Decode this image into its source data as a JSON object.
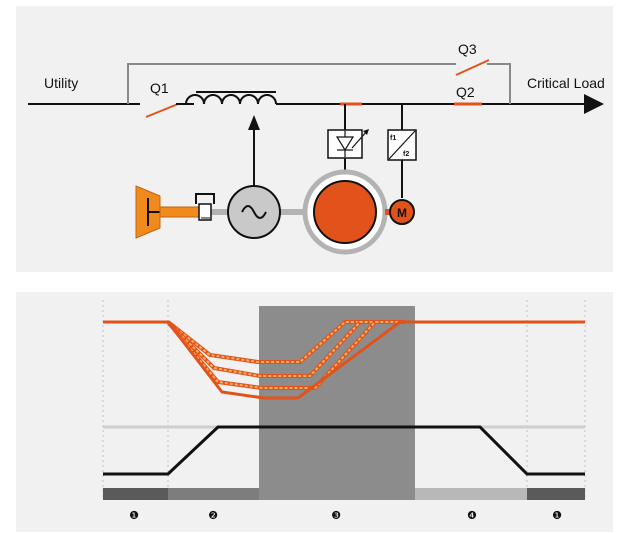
{
  "diagram": {
    "labels": {
      "utility": "Utility",
      "critical_load": "Critical Load",
      "q1": "Q1",
      "q2": "Q2",
      "q3": "Q3",
      "motor": "M",
      "converter_f1": "f1",
      "converter_f2": "f2"
    },
    "phases": {
      "labels": [
        "❶",
        "❷",
        "❸",
        "❹",
        "❶"
      ]
    },
    "colors": {
      "accent": "#e2531c",
      "engine": "#f08a1c",
      "panel_bg": "#f1f1f1",
      "dark_phase": "#5a5a5a",
      "mid_phase": "#7d7d7d",
      "light_phase": "#b8b8b8",
      "center_band": "#8c8c8c"
    }
  }
}
